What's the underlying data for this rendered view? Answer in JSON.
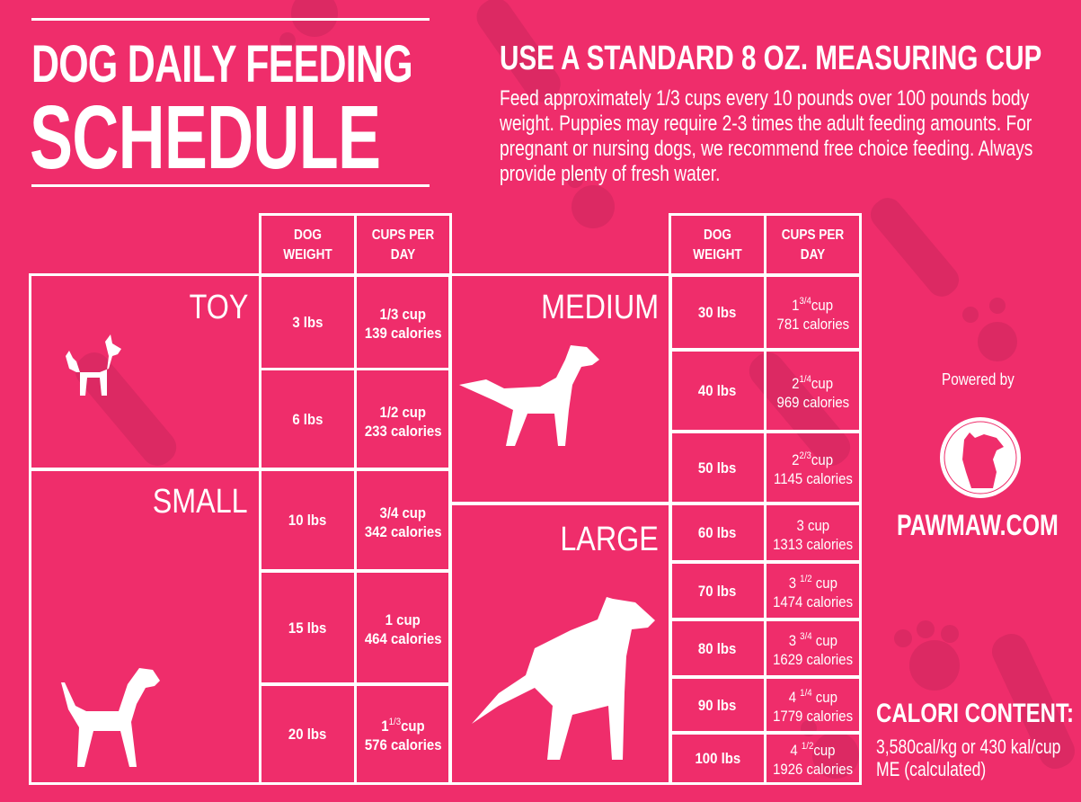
{
  "colors": {
    "background": "#ef2d6b",
    "pattern": "#dc2963",
    "foreground": "#ffffff"
  },
  "title": {
    "line1": "DOG DAILY FEEDING",
    "line2": "SCHEDULE"
  },
  "subtitle": "USE A STANDARD 8 OZ. MEASURING CUP",
  "description": "Feed approximately 1/3 cups every 10 pounds over 100 pounds body weight. Puppies may require 2-3 times the adult feeding amounts. For pregnant or nursing dogs, we recommend free choice feeding. Always provide plenty of fresh water.",
  "headers": {
    "weight": "DOG WEIGHT",
    "cups": "CUPS PER DAY"
  },
  "groups": {
    "toy": "TOY",
    "small": "SMALL",
    "medium": "MEDIUM",
    "large": "LARGE"
  },
  "rows": [
    {
      "weight": "3 lbs",
      "whole": "1/3 cup",
      "frac": "",
      "unit": "",
      "cal": "139 calories"
    },
    {
      "weight": "6 lbs",
      "whole": "1/2 cup",
      "frac": "",
      "unit": "",
      "cal": "233 calories"
    },
    {
      "weight": "10 lbs",
      "whole": "3/4 cup",
      "frac": "",
      "unit": "",
      "cal": "342 calories"
    },
    {
      "weight": "15 lbs",
      "whole": "1 cup",
      "frac": "",
      "unit": "",
      "cal": "464 calories"
    },
    {
      "weight": "20 lbs",
      "whole": "1",
      "frac": "1/3",
      "unit": "cup",
      "cal": "576 calories"
    },
    {
      "weight": "30 lbs",
      "whole": "1",
      "frac": "3/4",
      "unit": "cup",
      "cal": "781 calories"
    },
    {
      "weight": "40 lbs",
      "whole": "2",
      "frac": "1/4",
      "unit": "cup",
      "cal": "969 calories"
    },
    {
      "weight": "50 lbs",
      "whole": "2",
      "frac": "2/3",
      "unit": "cup",
      "cal": "1145 calories"
    },
    {
      "weight": "60 lbs",
      "whole": "3 cup",
      "frac": "",
      "unit": "",
      "cal": "1313 calories"
    },
    {
      "weight": "70 lbs",
      "whole": "3 ",
      "frac": "1/2",
      "unit": " cup",
      "cal": "1474 calories"
    },
    {
      "weight": "80 lbs",
      "whole": "3 ",
      "frac": "3/4",
      "unit": " cup",
      "cal": "1629 calories"
    },
    {
      "weight": "90 lbs",
      "whole": "4 ",
      "frac": "1/4",
      "unit": " cup",
      "cal": "1779 calories"
    },
    {
      "weight": "100 lbs",
      "whole": "4 ",
      "frac": "1/2",
      "unit": "cup",
      "cal": "1926 calories"
    }
  ],
  "powered_by": "Powered by",
  "brand": "PAWMAW.COM",
  "calorie": {
    "heading": "CALORI CONTENT:",
    "text": "3,580cal/kg or 430 kal/cup ME (calculated)"
  }
}
